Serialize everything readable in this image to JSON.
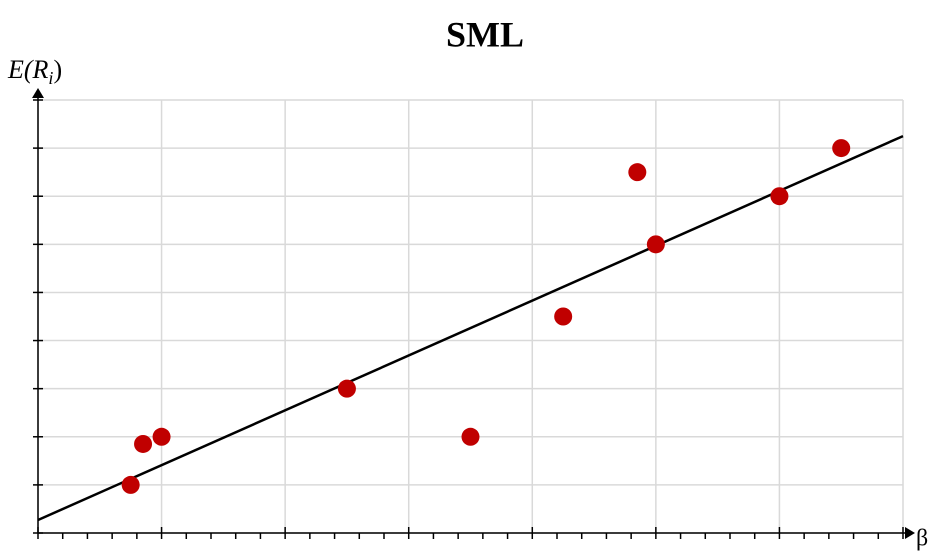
{
  "chart_data": {
    "type": "scatter",
    "title": "SML",
    "x_label": "β",
    "y_label": {
      "main": "E(R",
      "sub": "i",
      "close": ")"
    },
    "xlim": [
      0,
      7
    ],
    "ylim": [
      0,
      9
    ],
    "xticks": [
      0,
      1,
      2,
      3,
      4,
      5,
      6,
      7
    ],
    "yticks": [
      0,
      1,
      2,
      3,
      4,
      5,
      6,
      7,
      8,
      9
    ],
    "grid": true,
    "points": {
      "color": "#c00000",
      "x": [
        0.75,
        0.85,
        1.0,
        2.5,
        3.5,
        4.25,
        4.85,
        5.0,
        6.0,
        6.5
      ],
      "values": [
        1,
        1.85,
        2,
        3,
        2,
        4.5,
        7.5,
        6,
        7,
        8
      ]
    },
    "fit_line": {
      "color": "#000000",
      "x": [
        0,
        7
      ],
      "values": [
        0.27,
        8.25
      ]
    }
  }
}
